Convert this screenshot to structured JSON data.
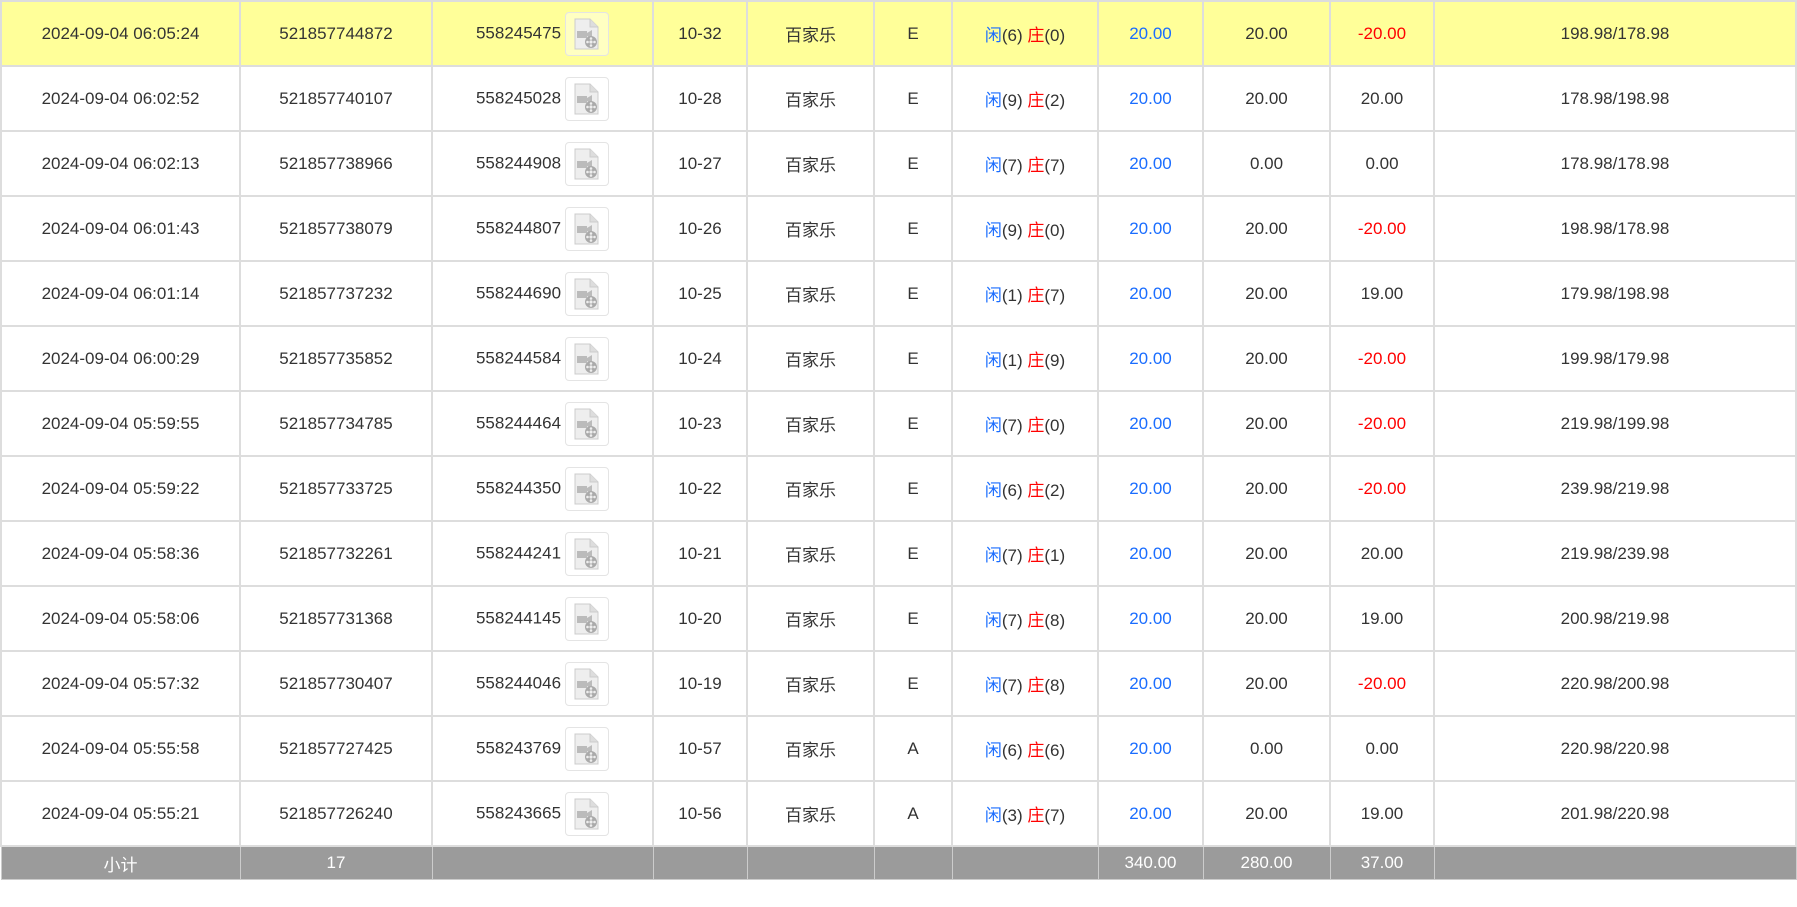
{
  "colors": {
    "highlight": "#ffff99",
    "blue": "#1a6dff",
    "red": "#ff0000",
    "footer": "#9b9b9b"
  },
  "rows": [
    {
      "time": "2024-09-04 06:05:24",
      "order": "521857744872",
      "round": "558245475",
      "table": "10-32",
      "game": "百家乐",
      "seat": "E",
      "p": "闲",
      "pv": "(6)",
      "b": "庄",
      "bv": "(0)",
      "bet": "20.00",
      "valid": "20.00",
      "win": "-20.00",
      "neg": true,
      "balance": "198.98/178.98",
      "highlight": true
    },
    {
      "time": "2024-09-04 06:02:52",
      "order": "521857740107",
      "round": "558245028",
      "table": "10-28",
      "game": "百家乐",
      "seat": "E",
      "p": "闲",
      "pv": "(9)",
      "b": "庄",
      "bv": "(2)",
      "bet": "20.00",
      "valid": "20.00",
      "win": "20.00",
      "neg": false,
      "balance": "178.98/198.98"
    },
    {
      "time": "2024-09-04 06:02:13",
      "order": "521857738966",
      "round": "558244908",
      "table": "10-27",
      "game": "百家乐",
      "seat": "E",
      "p": "闲",
      "pv": "(7)",
      "b": "庄",
      "bv": "(7)",
      "bet": "20.00",
      "valid": "0.00",
      "win": "0.00",
      "neg": false,
      "balance": "178.98/178.98"
    },
    {
      "time": "2024-09-04 06:01:43",
      "order": "521857738079",
      "round": "558244807",
      "table": "10-26",
      "game": "百家乐",
      "seat": "E",
      "p": "闲",
      "pv": "(9)",
      "b": "庄",
      "bv": "(0)",
      "bet": "20.00",
      "valid": "20.00",
      "win": "-20.00",
      "neg": true,
      "balance": "198.98/178.98"
    },
    {
      "time": "2024-09-04 06:01:14",
      "order": "521857737232",
      "round": "558244690",
      "table": "10-25",
      "game": "百家乐",
      "seat": "E",
      "p": "闲",
      "pv": "(1)",
      "b": "庄",
      "bv": "(7)",
      "bet": "20.00",
      "valid": "20.00",
      "win": "19.00",
      "neg": false,
      "balance": "179.98/198.98"
    },
    {
      "time": "2024-09-04 06:00:29",
      "order": "521857735852",
      "round": "558244584",
      "table": "10-24",
      "game": "百家乐",
      "seat": "E",
      "p": "闲",
      "pv": "(1)",
      "b": "庄",
      "bv": "(9)",
      "bet": "20.00",
      "valid": "20.00",
      "win": "-20.00",
      "neg": true,
      "balance": "199.98/179.98"
    },
    {
      "time": "2024-09-04 05:59:55",
      "order": "521857734785",
      "round": "558244464",
      "table": "10-23",
      "game": "百家乐",
      "seat": "E",
      "p": "闲",
      "pv": "(7)",
      "b": "庄",
      "bv": "(0)",
      "bet": "20.00",
      "valid": "20.00",
      "win": "-20.00",
      "neg": true,
      "balance": "219.98/199.98"
    },
    {
      "time": "2024-09-04 05:59:22",
      "order": "521857733725",
      "round": "558244350",
      "table": "10-22",
      "game": "百家乐",
      "seat": "E",
      "p": "闲",
      "pv": "(6)",
      "b": "庄",
      "bv": "(2)",
      "bet": "20.00",
      "valid": "20.00",
      "win": "-20.00",
      "neg": true,
      "balance": "239.98/219.98"
    },
    {
      "time": "2024-09-04 05:58:36",
      "order": "521857732261",
      "round": "558244241",
      "table": "10-21",
      "game": "百家乐",
      "seat": "E",
      "p": "闲",
      "pv": "(7)",
      "b": "庄",
      "bv": "(1)",
      "bet": "20.00",
      "valid": "20.00",
      "win": "20.00",
      "neg": false,
      "balance": "219.98/239.98"
    },
    {
      "time": "2024-09-04 05:58:06",
      "order": "521857731368",
      "round": "558244145",
      "table": "10-20",
      "game": "百家乐",
      "seat": "E",
      "p": "闲",
      "pv": "(7)",
      "b": "庄",
      "bv": "(8)",
      "bet": "20.00",
      "valid": "20.00",
      "win": "19.00",
      "neg": false,
      "balance": "200.98/219.98"
    },
    {
      "time": "2024-09-04 05:57:32",
      "order": "521857730407",
      "round": "558244046",
      "table": "10-19",
      "game": "百家乐",
      "seat": "E",
      "p": "闲",
      "pv": "(7)",
      "b": "庄",
      "bv": "(8)",
      "bet": "20.00",
      "valid": "20.00",
      "win": "-20.00",
      "neg": true,
      "balance": "220.98/200.98"
    },
    {
      "time": "2024-09-04 05:55:58",
      "order": "521857727425",
      "round": "558243769",
      "table": "10-57",
      "game": "百家乐",
      "seat": "A",
      "p": "闲",
      "pv": "(6)",
      "b": "庄",
      "bv": "(6)",
      "bet": "20.00",
      "valid": "0.00",
      "win": "0.00",
      "neg": false,
      "balance": "220.98/220.98"
    },
    {
      "time": "2024-09-04 05:55:21",
      "order": "521857726240",
      "round": "558243665",
      "table": "10-56",
      "game": "百家乐",
      "seat": "A",
      "p": "闲",
      "pv": "(3)",
      "b": "庄",
      "bv": "(7)",
      "bet": "20.00",
      "valid": "20.00",
      "win": "19.00",
      "neg": false,
      "balance": "201.98/220.98"
    }
  ],
  "footer": {
    "label": "小计",
    "count": "17",
    "bet": "340.00",
    "valid": "280.00",
    "win": "37.00"
  }
}
